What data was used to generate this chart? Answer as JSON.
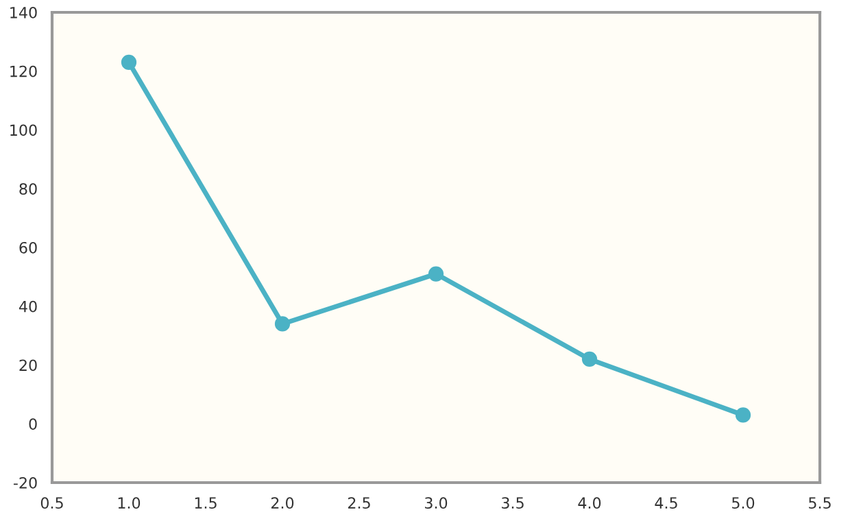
{
  "chart_data": {
    "type": "line",
    "x": [
      1,
      2,
      3,
      4,
      5
    ],
    "series": [
      {
        "color": "#4bb2c5",
        "values": [
          123,
          34,
          51,
          22,
          3
        ]
      }
    ],
    "xlim": [
      0.5,
      5.5
    ],
    "xticks": [
      0.5,
      {
        "value": 1,
        "label": "1.0"
      },
      1.5,
      {
        "value": 2,
        "label": "2.0"
      },
      2.5,
      {
        "value": 3,
        "label": "3.0"
      },
      3.5,
      {
        "value": 4,
        "label": "4.0"
      },
      4.5,
      {
        "value": 5,
        "label": "5.0"
      },
      5.5
    ],
    "ylim": [
      -20,
      140
    ],
    "yticks": [
      -20,
      0,
      20,
      40,
      60,
      80,
      100,
      120,
      140
    ],
    "grid": false,
    "marker": "circle",
    "line_style": "solid",
    "legend": false
  }
}
